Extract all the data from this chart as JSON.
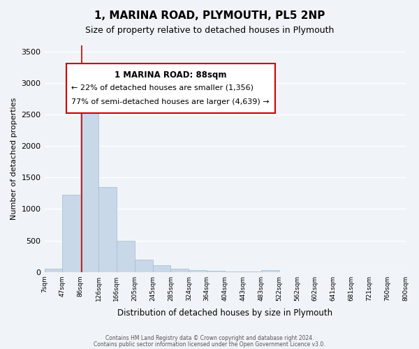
{
  "title": "1, MARINA ROAD, PLYMOUTH, PL5 2NP",
  "subtitle": "Size of property relative to detached houses in Plymouth",
  "xlabel": "Distribution of detached houses by size in Plymouth",
  "ylabel": "Number of detached properties",
  "bar_color": "#c8d8e8",
  "bar_edgecolor": "#a0bcd0",
  "background_color": "#f0f4f8",
  "grid_color": "#ffffff",
  "annotation_box_color": "#cc0000",
  "annotation_line_color": "#cc0000",
  "property_value": 88,
  "annotation_title": "1 MARINA ROAD: 88sqm",
  "annotation_line1": "← 22% of detached houses are smaller (1,356)",
  "annotation_line2": "77% of semi-detached houses are larger (4,639) →",
  "bin_labels": [
    "7sqm",
    "47sqm",
    "86sqm",
    "126sqm",
    "166sqm",
    "205sqm",
    "245sqm",
    "285sqm",
    "324sqm",
    "364sqm",
    "404sqm",
    "443sqm",
    "483sqm",
    "522sqm",
    "562sqm",
    "602sqm",
    "641sqm",
    "681sqm",
    "721sqm",
    "760sqm",
    "800sqm"
  ],
  "counts": [
    50,
    1230,
    2600,
    1350,
    500,
    200,
    110,
    50,
    30,
    15,
    10,
    5,
    30,
    0,
    0,
    0,
    0,
    0,
    0,
    0
  ],
  "ylim": [
    0,
    3600
  ],
  "yticks": [
    0,
    500,
    1000,
    1500,
    2000,
    2500,
    3000,
    3500
  ],
  "footer_line1": "Contains HM Land Registry data © Crown copyright and database right 2024.",
  "footer_line2": "Contains public sector information licensed under the Open Government Licence v3.0."
}
